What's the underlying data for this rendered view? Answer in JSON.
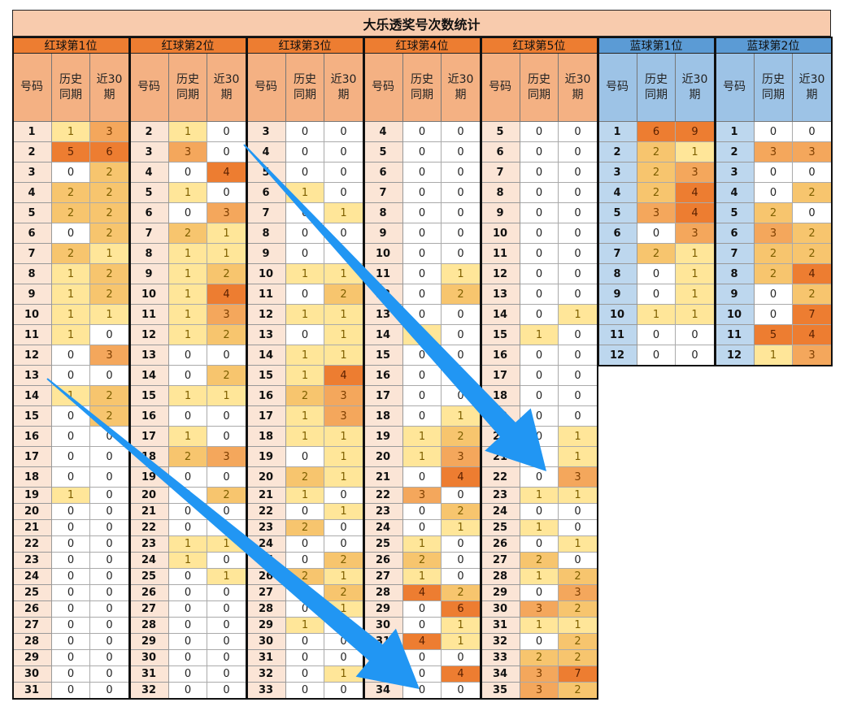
{
  "title": "大乐透奖号次数统计",
  "subheaders": [
    "号码",
    "历史\n同期",
    "近30\n期"
  ],
  "groups": [
    {
      "name": "红球第1位",
      "color": "red",
      "rows": [
        [
          1,
          1,
          3
        ],
        [
          2,
          5,
          6
        ],
        [
          3,
          0,
          2
        ],
        [
          4,
          2,
          2
        ],
        [
          5,
          2,
          2
        ],
        [
          6,
          0,
          2
        ],
        [
          7,
          2,
          1
        ],
        [
          8,
          1,
          2
        ],
        [
          9,
          1,
          2
        ],
        [
          10,
          1,
          1
        ],
        [
          11,
          1,
          0
        ],
        [
          12,
          0,
          3
        ],
        [
          13,
          0,
          0
        ],
        [
          14,
          1,
          2
        ],
        [
          15,
          0,
          2
        ],
        [
          16,
          0,
          0
        ],
        [
          17,
          0,
          0
        ],
        [
          18,
          0,
          0
        ],
        [
          19,
          1,
          0
        ],
        [
          20,
          0,
          0
        ],
        [
          21,
          0,
          0
        ],
        [
          22,
          0,
          0
        ],
        [
          23,
          0,
          0
        ],
        [
          24,
          0,
          0
        ],
        [
          25,
          0,
          0
        ],
        [
          26,
          0,
          0
        ],
        [
          27,
          0,
          0
        ],
        [
          28,
          0,
          0
        ],
        [
          29,
          0,
          0
        ],
        [
          30,
          0,
          0
        ],
        [
          31,
          0,
          0
        ]
      ]
    },
    {
      "name": "红球第2位",
      "color": "red",
      "rows": [
        [
          2,
          1,
          0
        ],
        [
          3,
          3,
          0
        ],
        [
          4,
          0,
          4
        ],
        [
          5,
          1,
          0
        ],
        [
          6,
          0,
          3
        ],
        [
          7,
          2,
          1
        ],
        [
          8,
          1,
          1
        ],
        [
          9,
          1,
          2
        ],
        [
          10,
          1,
          4
        ],
        [
          11,
          1,
          3
        ],
        [
          12,
          1,
          2
        ],
        [
          13,
          0,
          0
        ],
        [
          14,
          0,
          2
        ],
        [
          15,
          1,
          1
        ],
        [
          16,
          0,
          0
        ],
        [
          17,
          1,
          0
        ],
        [
          18,
          2,
          3
        ],
        [
          19,
          0,
          0
        ],
        [
          20,
          0,
          2
        ],
        [
          21,
          0,
          0
        ],
        [
          22,
          0,
          0
        ],
        [
          23,
          1,
          1
        ],
        [
          24,
          1,
          0
        ],
        [
          25,
          0,
          1
        ],
        [
          26,
          0,
          0
        ],
        [
          27,
          0,
          0
        ],
        [
          28,
          0,
          0
        ],
        [
          29,
          0,
          0
        ],
        [
          30,
          0,
          0
        ],
        [
          31,
          0,
          0
        ],
        [
          32,
          0,
          0
        ]
      ]
    },
    {
      "name": "红球第3位",
      "color": "red",
      "rows": [
        [
          3,
          0,
          0
        ],
        [
          4,
          0,
          0
        ],
        [
          5,
          0,
          0
        ],
        [
          6,
          1,
          0
        ],
        [
          7,
          0,
          1
        ],
        [
          8,
          0,
          0
        ],
        [
          9,
          0,
          0
        ],
        [
          10,
          1,
          1
        ],
        [
          11,
          0,
          2
        ],
        [
          12,
          1,
          1
        ],
        [
          13,
          0,
          1
        ],
        [
          14,
          1,
          1
        ],
        [
          15,
          1,
          4
        ],
        [
          16,
          2,
          3
        ],
        [
          17,
          1,
          3
        ],
        [
          18,
          1,
          1
        ],
        [
          19,
          0,
          1
        ],
        [
          20,
          2,
          1
        ],
        [
          21,
          1,
          0
        ],
        [
          22,
          0,
          1
        ],
        [
          23,
          2,
          0
        ],
        [
          24,
          0,
          0
        ],
        [
          25,
          0,
          2
        ],
        [
          26,
          2,
          1
        ],
        [
          27,
          0,
          2
        ],
        [
          28,
          0,
          1
        ],
        [
          29,
          1,
          0
        ],
        [
          30,
          0,
          0
        ],
        [
          31,
          0,
          0
        ],
        [
          32,
          0,
          1
        ],
        [
          33,
          0,
          0
        ]
      ]
    },
    {
      "name": "红球第4位",
      "color": "red",
      "rows": [
        [
          4,
          0,
          0
        ],
        [
          5,
          0,
          0
        ],
        [
          6,
          0,
          0
        ],
        [
          7,
          0,
          0
        ],
        [
          8,
          0,
          0
        ],
        [
          9,
          0,
          0
        ],
        [
          10,
          0,
          0
        ],
        [
          11,
          0,
          1
        ],
        [
          12,
          0,
          2
        ],
        [
          13,
          0,
          0
        ],
        [
          14,
          1,
          0
        ],
        [
          15,
          0,
          0
        ],
        [
          16,
          0,
          0
        ],
        [
          17,
          0,
          0
        ],
        [
          18,
          0,
          1
        ],
        [
          19,
          1,
          2
        ],
        [
          20,
          1,
          3
        ],
        [
          21,
          0,
          4
        ],
        [
          22,
          3,
          0
        ],
        [
          23,
          0,
          2
        ],
        [
          24,
          0,
          1
        ],
        [
          25,
          1,
          0
        ],
        [
          26,
          2,
          0
        ],
        [
          27,
          1,
          0
        ],
        [
          28,
          4,
          2
        ],
        [
          29,
          0,
          6
        ],
        [
          30,
          0,
          1
        ],
        [
          31,
          4,
          1
        ],
        [
          32,
          0,
          0
        ],
        [
          33,
          0,
          4
        ],
        [
          34,
          0,
          0
        ]
      ]
    },
    {
      "name": "红球第5位",
      "color": "red",
      "rows": [
        [
          5,
          0,
          0
        ],
        [
          6,
          0,
          0
        ],
        [
          7,
          0,
          0
        ],
        [
          8,
          0,
          0
        ],
        [
          9,
          0,
          0
        ],
        [
          10,
          0,
          0
        ],
        [
          11,
          0,
          0
        ],
        [
          12,
          0,
          0
        ],
        [
          13,
          0,
          0
        ],
        [
          14,
          0,
          1
        ],
        [
          15,
          1,
          0
        ],
        [
          16,
          0,
          0
        ],
        [
          17,
          0,
          0
        ],
        [
          18,
          0,
          0
        ],
        [
          19,
          0,
          0
        ],
        [
          20,
          0,
          1
        ],
        [
          21,
          0,
          1
        ],
        [
          22,
          0,
          3
        ],
        [
          23,
          1,
          1
        ],
        [
          24,
          0,
          0
        ],
        [
          25,
          1,
          0
        ],
        [
          26,
          0,
          1
        ],
        [
          27,
          2,
          0
        ],
        [
          28,
          1,
          2
        ],
        [
          29,
          0,
          3
        ],
        [
          30,
          3,
          2
        ],
        [
          31,
          1,
          1
        ],
        [
          32,
          0,
          2
        ],
        [
          33,
          2,
          2
        ],
        [
          34,
          3,
          7
        ],
        [
          35,
          3,
          2
        ]
      ]
    },
    {
      "name": "蓝球第1位",
      "color": "blue",
      "rows": [
        [
          1,
          6,
          9
        ],
        [
          2,
          2,
          1
        ],
        [
          3,
          2,
          3
        ],
        [
          4,
          2,
          4
        ],
        [
          5,
          3,
          4
        ],
        [
          6,
          0,
          3
        ],
        [
          7,
          2,
          1
        ],
        [
          8,
          0,
          1
        ],
        [
          9,
          0,
          1
        ],
        [
          10,
          1,
          1
        ],
        [
          11,
          0,
          0
        ],
        [
          12,
          0,
          0
        ]
      ]
    },
    {
      "name": "蓝球第2位",
      "color": "blue",
      "rows": [
        [
          1,
          0,
          0
        ],
        [
          2,
          3,
          3
        ],
        [
          3,
          0,
          0
        ],
        [
          4,
          0,
          2
        ],
        [
          5,
          2,
          0
        ],
        [
          6,
          3,
          2
        ],
        [
          7,
          2,
          2
        ],
        [
          8,
          2,
          4
        ],
        [
          9,
          0,
          2
        ],
        [
          10,
          0,
          7
        ],
        [
          11,
          5,
          4
        ],
        [
          12,
          1,
          3
        ]
      ]
    }
  ],
  "arrows_color": "#2196f3"
}
